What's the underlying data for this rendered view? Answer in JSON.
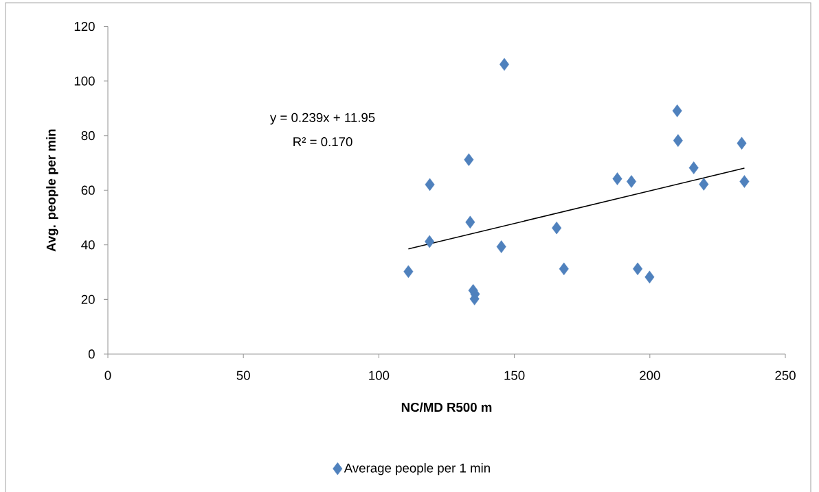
{
  "chart_data": {
    "type": "scatter",
    "xlabel": "NC/MD R500 m",
    "ylabel": "Avg. people per min",
    "annotations": [
      "y = 0.239x + 11.95",
      "R² = 0.170"
    ],
    "series": [
      {
        "name": "Average people per 1 min",
        "color": "#4f81bd",
        "x": [
          146.3,
          133.2,
          118.8,
          133.7,
          165.6,
          118.7,
          145.2,
          110.9,
          168.3,
          134.8,
          135.5,
          135.3,
          210.1,
          210.4,
          233.9,
          216.2,
          188.0,
          193.2,
          219.9,
          234.9,
          195.5,
          199.9
        ],
        "values": [
          106.1,
          71.2,
          62.1,
          48.3,
          46.2,
          41.2,
          39.3,
          30.2,
          31.2,
          23.3,
          22.0,
          20.2,
          89.1,
          78.2,
          77.2,
          68.2,
          64.2,
          63.2,
          62.2,
          63.2,
          31.2,
          28.2
        ]
      },
      {
        "type": "line",
        "color": "#000000",
        "marker": "none",
        "x": [
          110.9,
          234.9
        ],
        "values": [
          38.5,
          68.1
        ]
      }
    ],
    "xlim": [
      0,
      250
    ],
    "ylim": [
      0,
      120
    ],
    "xticks": [
      0,
      50,
      100,
      150,
      200,
      250
    ],
    "yticks": [
      0,
      20,
      40,
      60,
      80,
      100,
      120
    ],
    "marker": "diamond",
    "legend": "bottom",
    "grid": false
  }
}
